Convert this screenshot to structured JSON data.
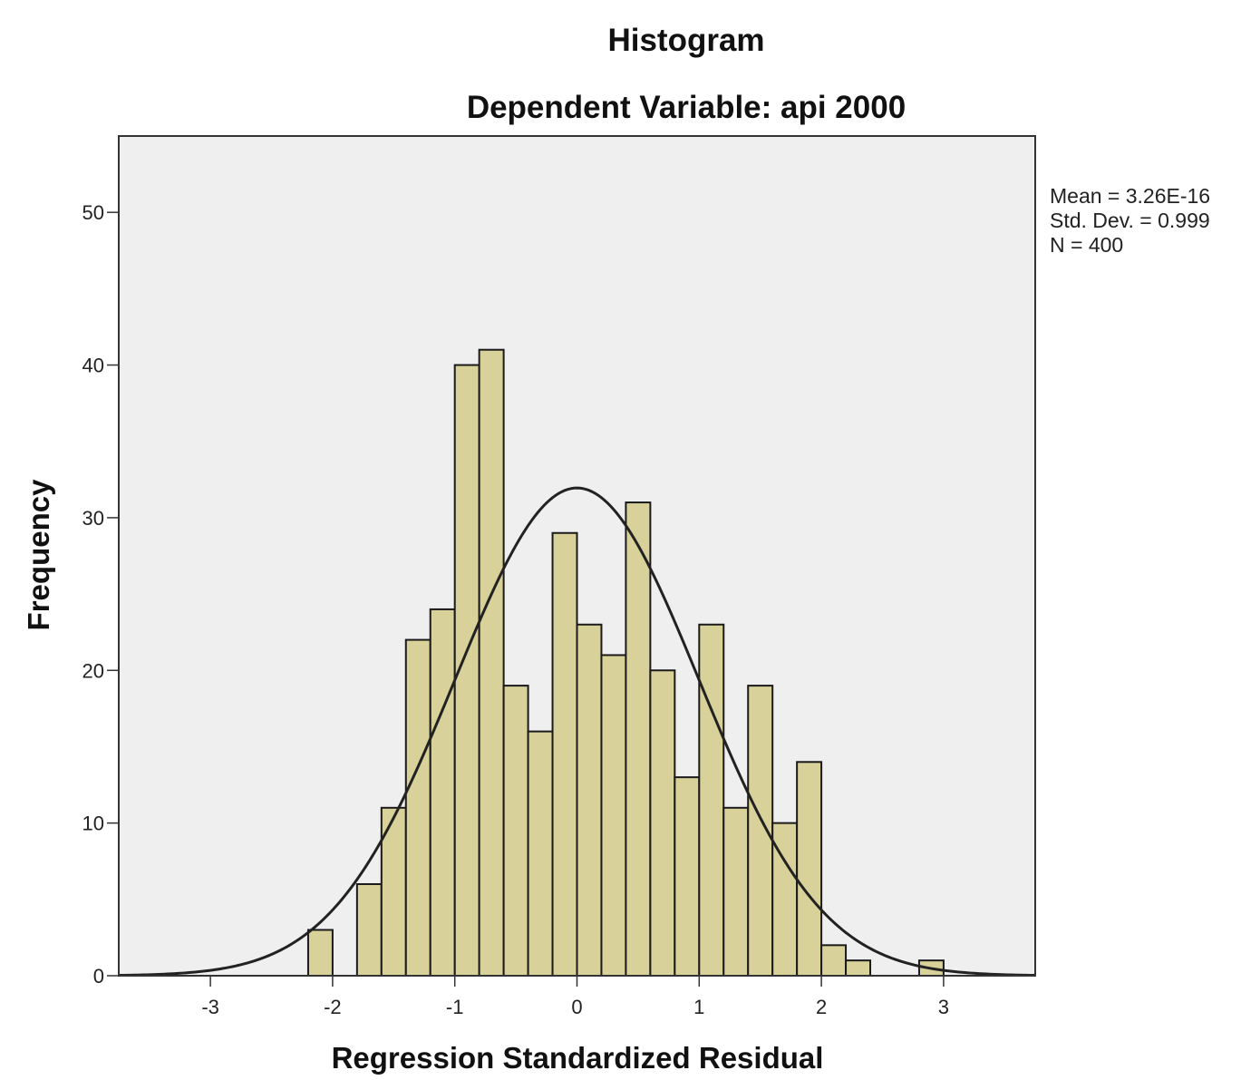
{
  "chart_data": {
    "type": "bar",
    "title": "Histogram",
    "subtitle": "Dependent Variable: api 2000",
    "xlabel": "Regression Standardized Residual",
    "ylabel": "Frequency",
    "xlim": [
      -3.75,
      3.75
    ],
    "ylim": [
      0,
      55
    ],
    "x_ticks": [
      -3,
      -2,
      -1,
      0,
      1,
      2,
      3
    ],
    "x_tick_labels": [
      "-3",
      "-2",
      "-1",
      "0",
      "1",
      "2",
      "3"
    ],
    "y_ticks": [
      0,
      10,
      20,
      30,
      40,
      50
    ],
    "y_tick_labels": [
      "0",
      "10",
      "20",
      "30",
      "40",
      "50"
    ],
    "bin_width": 0.2,
    "bins": [
      {
        "start": -2.2,
        "end": -2.0,
        "count": 3
      },
      {
        "start": -2.0,
        "end": -1.8,
        "count": 0
      },
      {
        "start": -1.8,
        "end": -1.6,
        "count": 6
      },
      {
        "start": -1.6,
        "end": -1.4,
        "count": 11
      },
      {
        "start": -1.4,
        "end": -1.2,
        "count": 22
      },
      {
        "start": -1.2,
        "end": -1.0,
        "count": 24
      },
      {
        "start": -1.0,
        "end": -0.8,
        "count": 40
      },
      {
        "start": -0.8,
        "end": -0.6,
        "count": 41
      },
      {
        "start": -0.6,
        "end": -0.4,
        "count": 19
      },
      {
        "start": -0.4,
        "end": -0.2,
        "count": 16
      },
      {
        "start": -0.2,
        "end": 0.0,
        "count": 29
      },
      {
        "start": 0.0,
        "end": 0.2,
        "count": 23
      },
      {
        "start": 0.2,
        "end": 0.4,
        "count": 21
      },
      {
        "start": 0.4,
        "end": 0.6,
        "count": 31
      },
      {
        "start": 0.6,
        "end": 0.8,
        "count": 20
      },
      {
        "start": 0.8,
        "end": 1.0,
        "count": 13
      },
      {
        "start": 1.0,
        "end": 1.2,
        "count": 23
      },
      {
        "start": 1.2,
        "end": 1.4,
        "count": 11
      },
      {
        "start": 1.4,
        "end": 1.6,
        "count": 19
      },
      {
        "start": 1.6,
        "end": 1.8,
        "count": 10
      },
      {
        "start": 1.8,
        "end": 2.0,
        "count": 14
      },
      {
        "start": 2.0,
        "end": 2.2,
        "count": 2
      },
      {
        "start": 2.2,
        "end": 2.4,
        "count": 1
      },
      {
        "start": 2.8,
        "end": 3.0,
        "count": 1
      }
    ],
    "normal_curve": {
      "mean": 0,
      "std_dev": 0.999,
      "n": 400
    },
    "stats": {
      "mean_label": "Mean = 3.26E-16",
      "std_label": "Std. Dev. = 0.999",
      "n_label": "N = 400"
    },
    "grid": false,
    "colors": {
      "plot_background": "#efefef",
      "bar_fill": "#d8d19a",
      "bar_stroke": "#1a1a1a",
      "curve": "#222222",
      "frame": "#333333"
    }
  }
}
